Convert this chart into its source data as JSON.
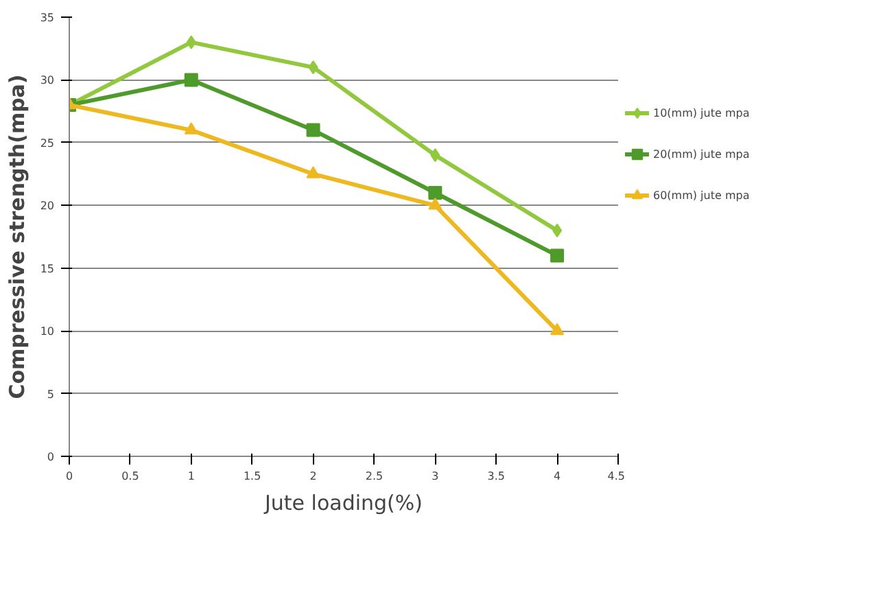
{
  "chart_data": {
    "type": "line",
    "xlabel": "Jute loading(%)",
    "ylabel": "Compressive strength(mpa)",
    "x": [
      0,
      1,
      2,
      3,
      4
    ],
    "series": [
      {
        "name": "10(mm) jute mpa",
        "color": "#92c83e",
        "marker": "diamond",
        "values": [
          28,
          33,
          31,
          24,
          18
        ]
      },
      {
        "name": "20(mm) jute mpa",
        "color": "#4e9a2a",
        "marker": "square",
        "values": [
          28,
          30,
          26,
          21,
          16
        ]
      },
      {
        "name": "60(mm) jute mpa",
        "color": "#eeb820",
        "marker": "triangle",
        "values": [
          28,
          26,
          22.5,
          20,
          10
        ]
      }
    ],
    "xlim": [
      0,
      4.5
    ],
    "xticks": [
      0,
      0.5,
      1,
      1.5,
      2,
      2.5,
      3,
      3.5,
      4,
      4.5
    ],
    "ylim": [
      0,
      35
    ],
    "yticks": [
      0,
      5,
      10,
      15,
      20,
      25,
      30,
      35
    ],
    "grid": "y",
    "legend": "right",
    "line_style": "solid"
  }
}
